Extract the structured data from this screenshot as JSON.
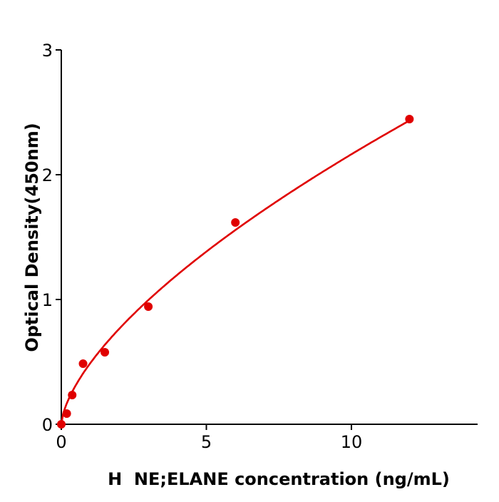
{
  "chart_data": {
    "type": "scatter",
    "title": "",
    "xlabel": "H  NE;ELANE concentration (ng/mL)",
    "ylabel": "Optical Density(450nm)",
    "xlim": [
      0,
      14.35
    ],
    "ylim": [
      0,
      3
    ],
    "xticks": [
      0,
      5,
      10
    ],
    "yticks": [
      0,
      1,
      2,
      3
    ],
    "grid": false,
    "colors": {
      "series": "#e00000",
      "axis": "#000000"
    },
    "series": [
      {
        "x": [
          0,
          0.1875,
          0.375,
          0.75,
          1.5,
          3,
          6,
          12
        ],
        "y": [
          0.0,
          0.086,
          0.234,
          0.486,
          0.577,
          0.943,
          1.617,
          2.446
        ]
      }
    ],
    "fit_curve": {
      "model": "power",
      "a": 0.49,
      "b": 0.645,
      "x_range": [
        0,
        12
      ]
    }
  }
}
